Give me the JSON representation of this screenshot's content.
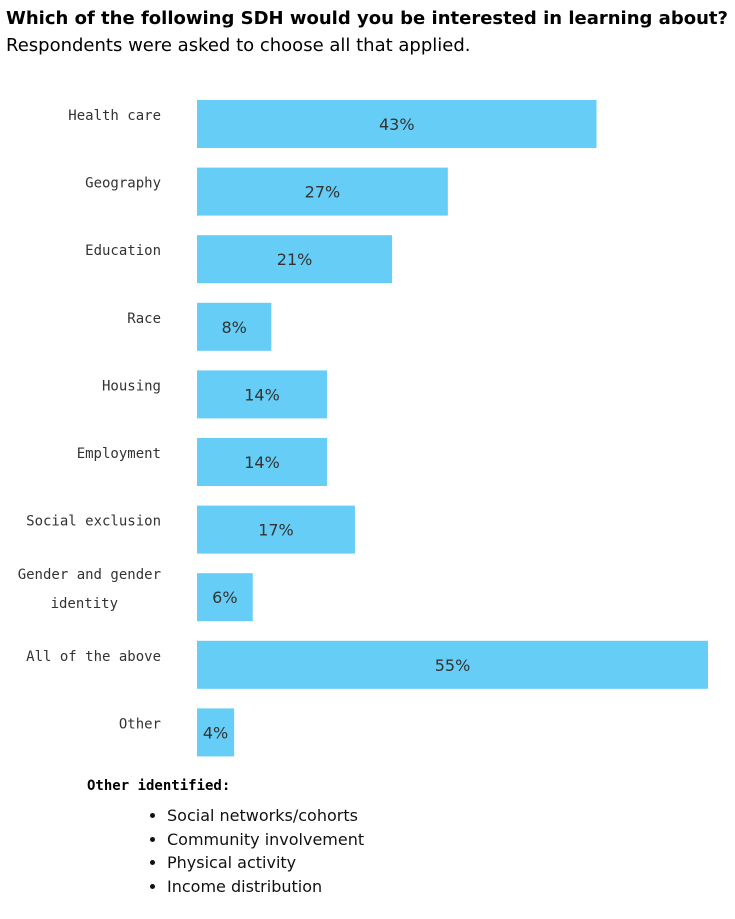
{
  "title": "Which of the following SDH would you be interested in learning about?",
  "subtitle": "Respondents were asked to choose all that applied.",
  "chart_data": {
    "type": "bar",
    "orientation": "horizontal",
    "categories": [
      "Health care",
      "Geography",
      "Education",
      "Race",
      "Housing",
      "Employment",
      "Social exclusion",
      "Gender and gender identity",
      "All of the above",
      "Other"
    ],
    "values": [
      43,
      27,
      21,
      8,
      14,
      14,
      17,
      6,
      55,
      4
    ],
    "value_labels": [
      "43%",
      "27%",
      "21%",
      "8%",
      "14%",
      "14%",
      "17%",
      "6%",
      "55%",
      "4%"
    ],
    "bar_color": "#66cdf6",
    "grid": false,
    "legend": "none"
  },
  "notes": {
    "title": "Other identified:",
    "items": [
      "Social networks/cohorts",
      "Community involvement",
      "Physical activity",
      "Income distribution"
    ]
  }
}
